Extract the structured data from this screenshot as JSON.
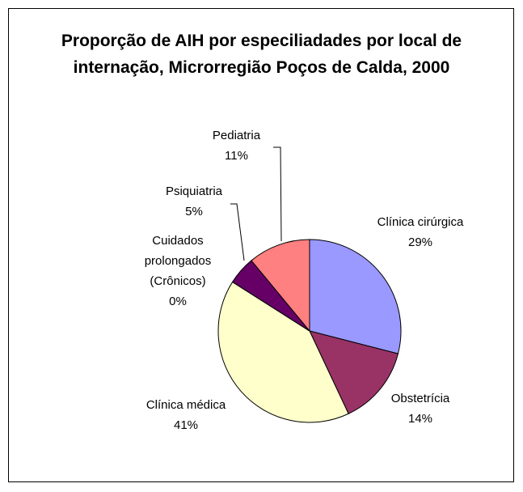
{
  "chart_data": {
    "type": "pie",
    "title": "Proporção de AIH por especiliadades por local de internação, Microrregião Poços de Calda, 2000",
    "categories": [
      "Clínica cirúrgica",
      "Obstetrícia",
      "Clínica médica",
      "Cuidados prolongados (Crônicos)",
      "Psiquiatria",
      "Pediatria"
    ],
    "values": [
      29,
      14,
      41,
      0,
      5,
      11
    ],
    "value_labels": [
      "29%",
      "14%",
      "41%",
      "0%",
      "5%",
      "11%"
    ],
    "colors": [
      "#9999ff",
      "#993366",
      "#ffffcc",
      "#ccffff",
      "#660066",
      "#ff8080"
    ]
  }
}
